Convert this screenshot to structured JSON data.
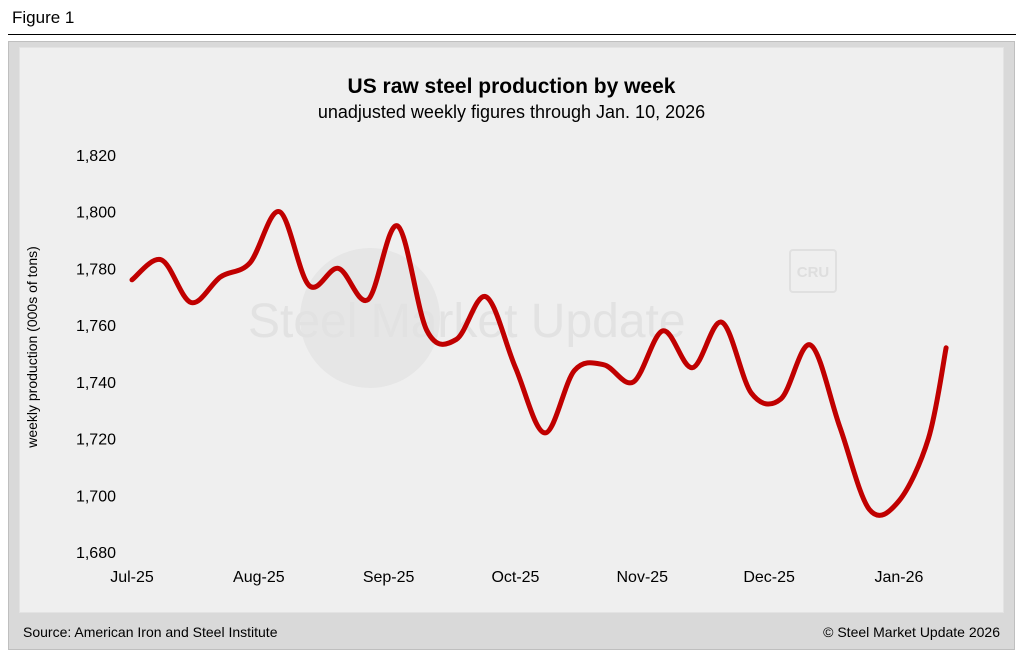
{
  "figure_label": "Figure 1",
  "watermark": {
    "text": "Steel Market Update",
    "logo": "CRU"
  },
  "chart_data": {
    "type": "line",
    "title": "US raw steel production by week",
    "subtitle": "unadjusted weekly figures through Jan. 10, 2026",
    "ylabel": "weekly production (000s of tons)",
    "xlabel": "",
    "ylim": [
      1680,
      1820
    ],
    "yticks": [
      1680,
      1700,
      1720,
      1740,
      1760,
      1780,
      1800,
      1820
    ],
    "ytick_labels": [
      "1,680",
      "1,700",
      "1,720",
      "1,740",
      "1,760",
      "1,780",
      "1,800",
      "1,820"
    ],
    "xlim": [
      0,
      27.8
    ],
    "xticks": [
      0,
      4.3,
      8.7,
      13,
      17.3,
      21.6,
      26
    ],
    "xtick_labels": [
      "Jul-25",
      "Aug-25",
      "Sep-25",
      "Oct-25",
      "Nov-25",
      "Dec-25",
      "Jan-26"
    ],
    "series": [
      {
        "name": "Weekly production",
        "color": "#c00000",
        "x": [
          0,
          1,
          2,
          3,
          4,
          5,
          6,
          7,
          8,
          9,
          10,
          11,
          12,
          13,
          14,
          15,
          16,
          17,
          18,
          19,
          20,
          21,
          22,
          23,
          24,
          25,
          26,
          27,
          27.6
        ],
        "values": [
          1776,
          1783,
          1768,
          1777,
          1782,
          1800,
          1774,
          1780,
          1769,
          1795,
          1758,
          1755,
          1770,
          1745,
          1722,
          1744,
          1746,
          1740,
          1758,
          1745,
          1761,
          1736,
          1734,
          1753,
          1724,
          1695,
          1698,
          1720,
          1752
        ]
      }
    ]
  },
  "footer": {
    "source": "Source: American Iron and Steel Institute",
    "copyright": "© Steel Market Update 2026"
  }
}
